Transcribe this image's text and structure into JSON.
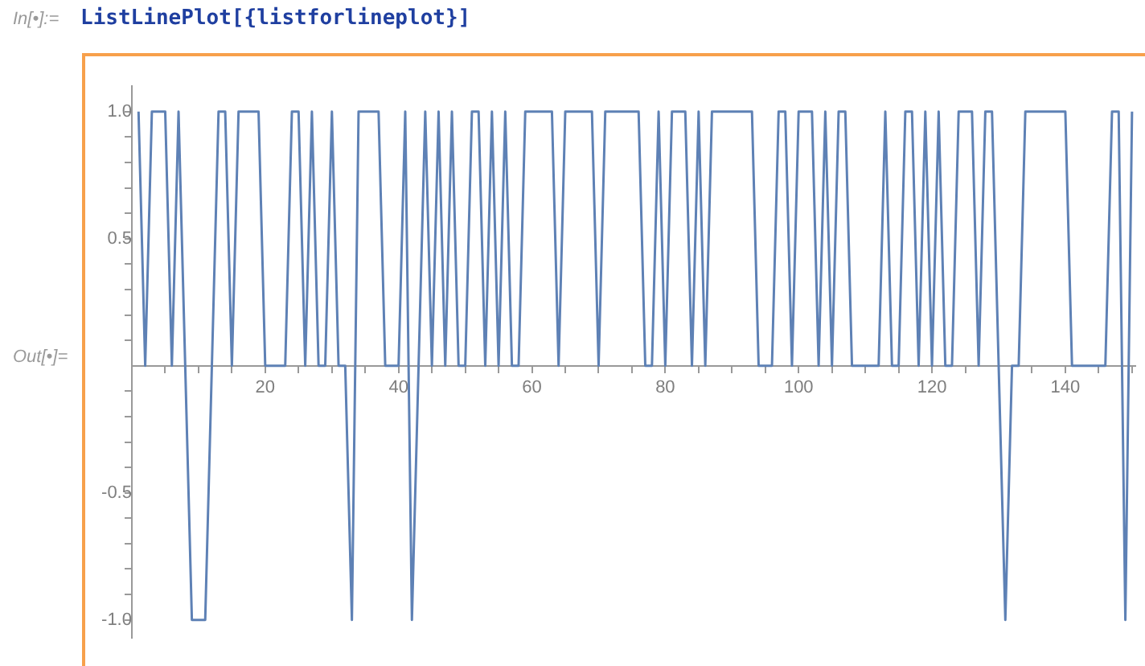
{
  "chart_data": {
    "type": "line",
    "annotations": [
      "In[•]:=",
      "ListLinePlot[{listforlineplot}]",
      "Out[•]="
    ],
    "x": [
      1,
      2,
      3,
      4,
      5,
      6,
      7,
      8,
      9,
      10,
      11,
      12,
      13,
      14,
      15,
      16,
      17,
      18,
      19,
      20,
      21,
      22,
      23,
      24,
      25,
      26,
      27,
      28,
      29,
      30,
      31,
      32,
      33,
      34,
      35,
      36,
      37,
      38,
      39,
      40,
      41,
      42,
      43,
      44,
      45,
      46,
      47,
      48,
      49,
      50,
      51,
      52,
      53,
      54,
      55,
      56,
      57,
      58,
      59,
      60,
      61,
      62,
      63,
      64,
      65,
      66,
      67,
      68,
      69,
      70,
      71,
      72,
      73,
      74,
      75,
      76,
      77,
      78,
      79,
      80,
      81,
      82,
      83,
      84,
      85,
      86,
      87,
      88,
      89,
      90,
      91,
      92,
      93,
      94,
      95,
      96,
      97,
      98,
      99,
      100,
      101,
      102,
      103,
      104,
      105,
      106,
      107,
      108,
      109,
      110,
      111,
      112,
      113,
      114,
      115,
      116,
      117,
      118,
      119,
      120,
      121,
      122,
      123,
      124,
      125,
      126,
      127,
      128,
      129,
      130,
      131,
      132,
      133,
      134,
      135,
      136,
      137,
      138,
      139,
      140,
      141,
      142,
      143,
      144,
      145,
      146,
      147,
      148,
      149,
      150
    ],
    "series": [
      {
        "color": "#5e81b5",
        "values": [
          1,
          0,
          1,
          1,
          1,
          0,
          1,
          0,
          -1,
          -1,
          -1,
          0,
          1,
          1,
          0,
          1,
          1,
          1,
          1,
          0,
          0,
          0,
          0,
          1,
          1,
          0,
          1,
          0,
          0,
          1,
          0,
          0,
          -1,
          1,
          1,
          1,
          1,
          0,
          0,
          0,
          1,
          -1,
          0,
          1,
          0,
          1,
          0,
          1,
          0,
          0,
          1,
          1,
          0,
          1,
          0,
          1,
          0,
          0,
          1,
          1,
          1,
          1,
          1,
          0,
          1,
          1,
          1,
          1,
          1,
          0,
          1,
          1,
          1,
          1,
          1,
          1,
          0,
          0,
          1,
          0,
          1,
          1,
          1,
          0,
          1,
          0,
          1,
          1,
          1,
          1,
          1,
          1,
          1,
          0,
          0,
          0,
          1,
          1,
          0,
          1,
          1,
          1,
          0,
          1,
          0,
          1,
          1,
          0,
          0,
          0,
          0,
          0,
          1,
          0,
          0,
          1,
          1,
          0,
          1,
          0,
          1,
          0,
          0,
          1,
          1,
          1,
          0,
          1,
          1,
          0,
          -1,
          0,
          0,
          1,
          1,
          1,
          1,
          1,
          1,
          1,
          0,
          0,
          0,
          0,
          0,
          0,
          1,
          1,
          -1,
          1
        ]
      }
    ],
    "xlim": [
      0,
      150.5
    ],
    "xticks": [
      {
        "value": 5,
        "label": null
      },
      {
        "value": 10,
        "label": null
      },
      {
        "value": 15,
        "label": null
      },
      20,
      {
        "value": 25,
        "label": null
      },
      {
        "value": 30,
        "label": null
      },
      {
        "value": 35,
        "label": null
      },
      40,
      {
        "value": 45,
        "label": null
      },
      {
        "value": 50,
        "label": null
      },
      {
        "value": 55,
        "label": null
      },
      60,
      {
        "value": 65,
        "label": null
      },
      {
        "value": 70,
        "label": null
      },
      {
        "value": 75,
        "label": null
      },
      80,
      {
        "value": 85,
        "label": null
      },
      {
        "value": 90,
        "label": null
      },
      {
        "value": 95,
        "label": null
      },
      100,
      {
        "value": 105,
        "label": null
      },
      {
        "value": 110,
        "label": null
      },
      {
        "value": 115,
        "label": null
      },
      120,
      {
        "value": 125,
        "label": null
      },
      {
        "value": 130,
        "label": null
      },
      {
        "value": 135,
        "label": null
      },
      140,
      {
        "value": 145,
        "label": null
      },
      {
        "value": 150,
        "label": null
      }
    ],
    "ylim": [
      -1.07,
      1.1
    ],
    "yticks": [
      {
        "value": -1,
        "label": "-1.0"
      },
      {
        "value": -0.9,
        "label": null
      },
      {
        "value": -0.8,
        "label": null
      },
      {
        "value": -0.7,
        "label": null
      },
      {
        "value": -0.6,
        "label": null
      },
      {
        "value": -0.5,
        "label": "-0.5"
      },
      {
        "value": -0.4,
        "label": null
      },
      {
        "value": -0.3,
        "label": null
      },
      {
        "value": -0.2,
        "label": null
      },
      {
        "value": -0.1,
        "label": null
      },
      {
        "value": 0.1,
        "label": null
      },
      {
        "value": 0.2,
        "label": null
      },
      {
        "value": 0.3,
        "label": null
      },
      {
        "value": 0.4,
        "label": null
      },
      {
        "value": 0.5,
        "label": "0.5"
      },
      {
        "value": 0.6,
        "label": null
      },
      {
        "value": 0.7,
        "label": null
      },
      {
        "value": 0.8,
        "label": null
      },
      {
        "value": 0.9,
        "label": null
      },
      {
        "value": 1,
        "label": "1.0"
      }
    ],
    "grid": false,
    "legend": false,
    "marker": "none",
    "line_style": "solid"
  }
}
